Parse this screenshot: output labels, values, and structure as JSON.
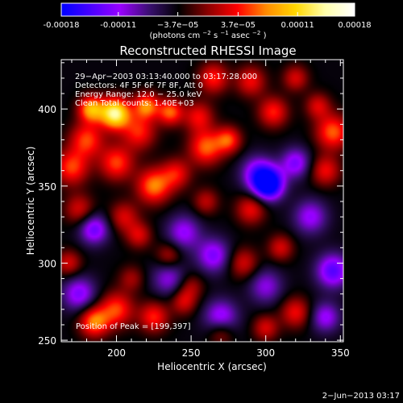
{
  "colorbar": {
    "tick_values": [
      -0.00018,
      -0.00011,
      -3.7e-05,
      3.7e-05,
      0.00011,
      0.00018
    ],
    "tick_labels": [
      "-0.00018",
      "-0.00011",
      "−3.7e−05",
      "3.7e−05",
      "0.00011",
      "0.00018"
    ],
    "unit_base": "(photons cm",
    "unit_exp1": "−2",
    "unit_mid": " s",
    "unit_exp2": "−1",
    "unit_tail": " asec",
    "unit_exp3": "−2",
    "unit_close": ")",
    "colors": [
      "#0000ff",
      "#4a00ff",
      "#9900ff",
      "#3a1070",
      "#000000",
      "#8b0000",
      "#ff0000",
      "#ff8c00",
      "#ffd700",
      "#ffffaa",
      "#ffffff"
    ]
  },
  "chart_data": {
    "type": "heatmap",
    "title": "Reconstructed RHESSI Image",
    "xlabel": "Heliocentric X (arcsec)",
    "ylabel": "Heliocentric Y (arcsec)",
    "xlim": [
      163,
      352
    ],
    "ylim": [
      249,
      432
    ],
    "x_ticks": [
      200,
      250,
      300,
      350
    ],
    "y_ticks": [
      250,
      300,
      350,
      400
    ],
    "x_tick_labels": [
      "200",
      "250",
      "300",
      "350"
    ],
    "y_tick_labels": [
      "250",
      "300",
      "350",
      "400"
    ],
    "annotations": [
      "29−Apr−2003 03:13:40.000 to 03:17:28.000",
      "Detectors: 4F 5F 6F 7F 8F, Att 0",
      "Energy Range: 12.0 − 25.0 keV",
      "Clean    Total counts: 1.40E+03"
    ],
    "peak_label": "Position of Peak = [199,397]",
    "peak": [
      199,
      397
    ],
    "vmin": -0.00018,
    "vmax": 0.00018,
    "blobs": [
      {
        "x": 199,
        "y": 397,
        "a": 1.0,
        "s": 7
      },
      {
        "x": 183,
        "y": 400,
        "a": 0.7,
        "s": 6
      },
      {
        "x": 220,
        "y": 402,
        "a": 0.6,
        "s": 6
      },
      {
        "x": 236,
        "y": 398,
        "a": 0.55,
        "s": 6
      },
      {
        "x": 215,
        "y": 385,
        "a": 0.45,
        "s": 8
      },
      {
        "x": 180,
        "y": 380,
        "a": 0.5,
        "s": 8
      },
      {
        "x": 170,
        "y": 362,
        "a": 0.5,
        "s": 8
      },
      {
        "x": 200,
        "y": 365,
        "a": 0.5,
        "s": 8
      },
      {
        "x": 225,
        "y": 350,
        "a": 0.6,
        "s": 8
      },
      {
        "x": 240,
        "y": 358,
        "a": 0.4,
        "s": 7
      },
      {
        "x": 260,
        "y": 375,
        "a": 0.55,
        "s": 8
      },
      {
        "x": 275,
        "y": 380,
        "a": 0.5,
        "s": 6
      },
      {
        "x": 255,
        "y": 395,
        "a": 0.4,
        "s": 7
      },
      {
        "x": 265,
        "y": 420,
        "a": 0.45,
        "s": 7
      },
      {
        "x": 290,
        "y": 418,
        "a": 0.4,
        "s": 7
      },
      {
        "x": 305,
        "y": 398,
        "a": 0.45,
        "s": 7
      },
      {
        "x": 320,
        "y": 420,
        "a": 0.35,
        "s": 6
      },
      {
        "x": 345,
        "y": 385,
        "a": 0.55,
        "s": 8
      },
      {
        "x": 340,
        "y": 360,
        "a": 0.4,
        "s": 7
      },
      {
        "x": 335,
        "y": 402,
        "a": 0.35,
        "s": 6
      },
      {
        "x": 175,
        "y": 335,
        "a": 0.35,
        "s": 7
      },
      {
        "x": 205,
        "y": 330,
        "a": 0.35,
        "s": 7
      },
      {
        "x": 215,
        "y": 318,
        "a": 0.35,
        "s": 6
      },
      {
        "x": 290,
        "y": 335,
        "a": 0.4,
        "s": 7
      },
      {
        "x": 260,
        "y": 340,
        "a": 0.3,
        "s": 6
      },
      {
        "x": 168,
        "y": 300,
        "a": 0.35,
        "s": 6
      },
      {
        "x": 235,
        "y": 305,
        "a": 0.3,
        "s": 6
      },
      {
        "x": 285,
        "y": 300,
        "a": 0.35,
        "s": 7
      },
      {
        "x": 310,
        "y": 310,
        "a": 0.35,
        "s": 6
      },
      {
        "x": 200,
        "y": 270,
        "a": 0.5,
        "s": 8
      },
      {
        "x": 185,
        "y": 262,
        "a": 0.6,
        "s": 7
      },
      {
        "x": 225,
        "y": 265,
        "a": 0.45,
        "s": 7
      },
      {
        "x": 245,
        "y": 275,
        "a": 0.35,
        "s": 6
      },
      {
        "x": 320,
        "y": 268,
        "a": 0.4,
        "s": 7
      },
      {
        "x": 300,
        "y": 258,
        "a": 0.35,
        "s": 6
      },
      {
        "x": 270,
        "y": 255,
        "a": 0.3,
        "s": 6
      },
      {
        "x": 210,
        "y": 290,
        "a": 0.25,
        "s": 6
      },
      {
        "x": 250,
        "y": 285,
        "a": 0.25,
        "s": 6
      },
      {
        "x": 302,
        "y": 351,
        "a": -0.9,
        "s": 7
      },
      {
        "x": 295,
        "y": 358,
        "a": -0.5,
        "s": 8
      },
      {
        "x": 185,
        "y": 322,
        "a": -0.5,
        "s": 7
      },
      {
        "x": 345,
        "y": 295,
        "a": -0.55,
        "s": 8
      },
      {
        "x": 330,
        "y": 330,
        "a": -0.4,
        "s": 8
      },
      {
        "x": 245,
        "y": 320,
        "a": -0.4,
        "s": 8
      },
      {
        "x": 265,
        "y": 305,
        "a": -0.45,
        "s": 8
      },
      {
        "x": 270,
        "y": 265,
        "a": -0.45,
        "s": 8
      },
      {
        "x": 175,
        "y": 280,
        "a": -0.45,
        "s": 8
      },
      {
        "x": 340,
        "y": 265,
        "a": -0.4,
        "s": 7
      },
      {
        "x": 320,
        "y": 365,
        "a": -0.45,
        "s": 7
      },
      {
        "x": 235,
        "y": 290,
        "a": -0.35,
        "s": 8
      },
      {
        "x": 300,
        "y": 285,
        "a": -0.35,
        "s": 8
      }
    ]
  },
  "footer": {
    "timestamp": "2−Jun−2013 03:17"
  }
}
